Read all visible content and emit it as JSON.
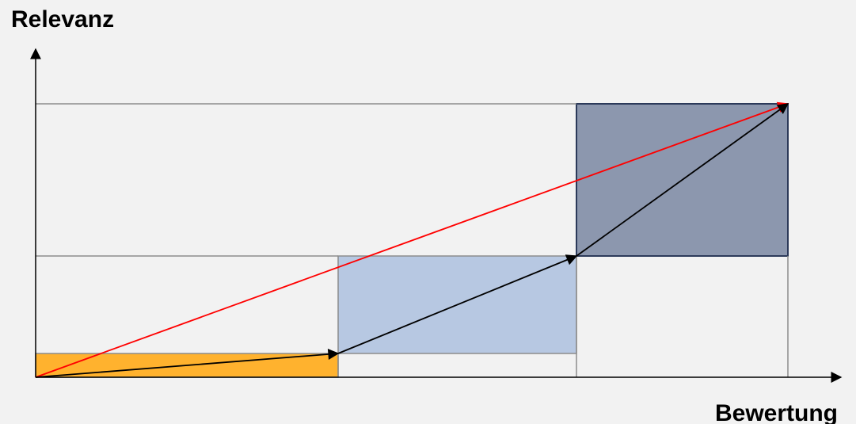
{
  "axes": {
    "y_label": "Relevanz",
    "x_label": "Bewertung"
  },
  "colors": {
    "background": "#f2f2f2",
    "grid": "#8c8c8c",
    "axis": "#000000",
    "level_low_fill": "#ffb22e",
    "level_mid_fill": "#b7c8e2",
    "level_high_fill": "#8c97ae",
    "level_high_border": "#2c3a5a",
    "step_arrow": "#000000",
    "direct_arrow": "#ff0000"
  }
}
